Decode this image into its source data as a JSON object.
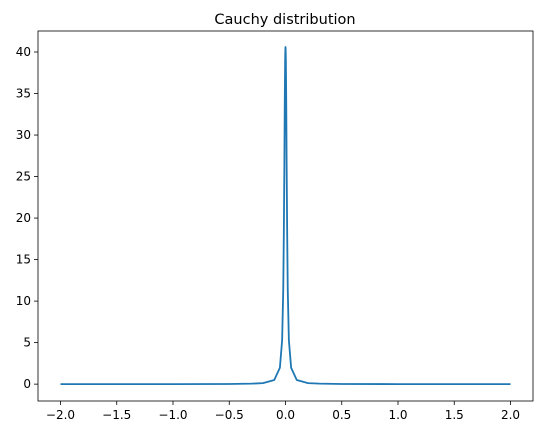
{
  "chart_data": {
    "type": "line",
    "title": "Cauchy distribution",
    "xlabel": "",
    "ylabel": "",
    "xlim": [
      -2.2,
      2.2
    ],
    "ylim": [
      -2.03,
      42.53
    ],
    "xticks": [
      -2.0,
      -1.5,
      -1.0,
      -0.5,
      0.0,
      0.5,
      1.0,
      1.5,
      2.0
    ],
    "xtick_labels": [
      "−2.0",
      "−1.5",
      "−1.0",
      "−0.5",
      "0.0",
      "0.5",
      "1.0",
      "1.5",
      "2.0"
    ],
    "yticks": [
      0,
      5,
      10,
      15,
      20,
      25,
      30,
      35,
      40
    ],
    "ytick_labels": [
      "0",
      "5",
      "10",
      "15",
      "20",
      "25",
      "30",
      "35",
      "40"
    ],
    "grid": false,
    "legend": "none",
    "series": [
      {
        "color": "#1f77b4",
        "x": [
          -2.0,
          -1.5,
          -1.0,
          -0.5,
          -0.3,
          -0.2,
          -0.1,
          -0.05,
          -0.03,
          -0.02,
          -0.015,
          -0.01,
          -0.007,
          -0.005,
          -0.003,
          -0.002,
          -0.001,
          0.0,
          0.001,
          0.002,
          0.003,
          0.005,
          0.007,
          0.01,
          0.015,
          0.02,
          0.03,
          0.05,
          0.1,
          0.2,
          0.3,
          0.5,
          1.0,
          1.5,
          2.0
        ],
        "y": [
          0.0012,
          0.0022,
          0.005,
          0.02,
          0.06,
          0.12,
          0.5,
          1.97,
          5.3,
          11.4,
          18.0,
          26.4,
          33.0,
          36.5,
          39.1,
          39.8,
          40.4,
          40.6,
          40.4,
          39.8,
          39.1,
          36.5,
          33.0,
          26.4,
          18.0,
          11.4,
          5.3,
          1.97,
          0.5,
          0.12,
          0.06,
          0.02,
          0.005,
          0.0022,
          0.0012
        ]
      }
    ]
  }
}
